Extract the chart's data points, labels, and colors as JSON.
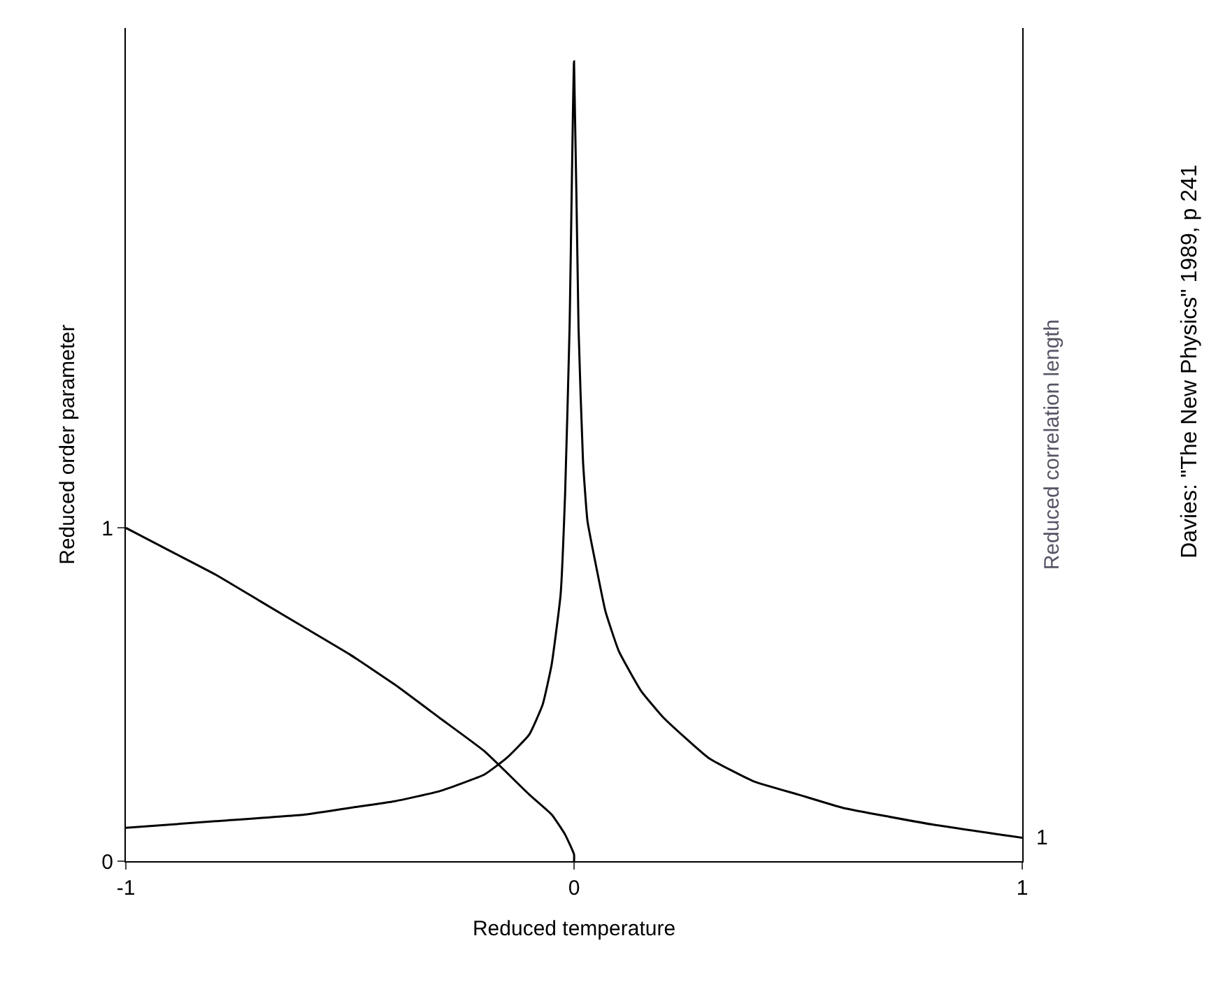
{
  "chart_data": {
    "type": "line",
    "xlabel": "Reduced temperature",
    "ylabel": "Reduced order parameter",
    "y2label": "Reduced correlation length",
    "xlim": [
      -1,
      1
    ],
    "xticks": [
      -1,
      0,
      1
    ],
    "ylim": [
      0,
      2.5
    ],
    "yticks": [
      0,
      1
    ],
    "marker": "none",
    "line_style": "solid",
    "series": [
      {
        "color": "#000000",
        "x": [
          -1,
          -0.9,
          -0.8,
          -0.7,
          -0.6,
          -0.5,
          -0.4,
          -0.3,
          -0.2,
          -0.1,
          -0.05,
          -0.02,
          0,
          0
        ],
        "values": [
          1.0,
          0.93,
          0.86,
          0.78,
          0.7,
          0.62,
          0.53,
          0.43,
          0.33,
          0.2,
          0.14,
          0.08,
          0.02,
          0
        ]
      },
      {
        "color": "#000000",
        "x": [
          -1,
          -0.8,
          -0.6,
          -0.5,
          -0.4,
          -0.3,
          -0.2,
          -0.15,
          -0.1,
          -0.07,
          -0.05,
          -0.03,
          -0.02,
          -0.01,
          0,
          0.01,
          0.02,
          0.03,
          0.05,
          0.07,
          0.1,
          0.15,
          0.2,
          0.3,
          0.4,
          0.5,
          0.6,
          0.8,
          1
        ],
        "values": [
          0.1,
          0.12,
          0.14,
          0.16,
          0.18,
          0.21,
          0.26,
          0.31,
          0.38,
          0.47,
          0.59,
          0.8,
          1.1,
          1.6,
          2.4,
          1.6,
          1.2,
          1.02,
          0.88,
          0.75,
          0.63,
          0.51,
          0.43,
          0.31,
          0.24,
          0.2,
          0.16,
          0.11,
          0.07
        ]
      }
    ],
    "annotations": [
      {
        "text": "1",
        "x": 1,
        "y": 0.07
      },
      "Davies: \"The New Physics\" 1989, p 241"
    ]
  }
}
